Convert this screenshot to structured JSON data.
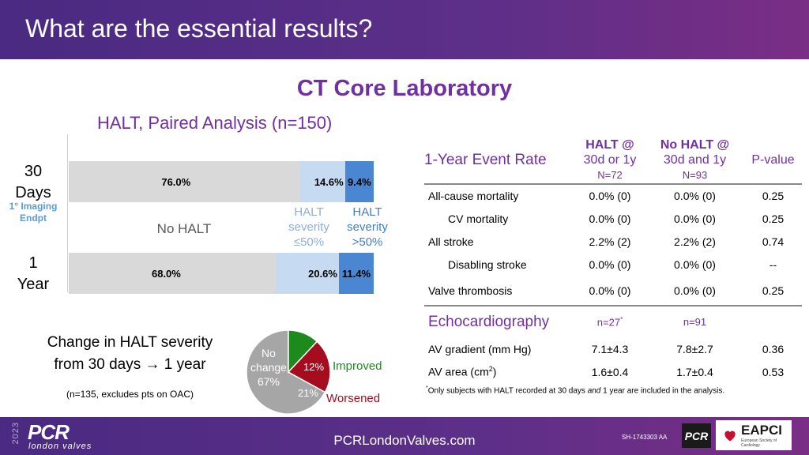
{
  "header": {
    "title": "What are the essential results?"
  },
  "subtitle": "CT Core Laboratory",
  "analysis_title": "HALT, Paired Analysis (n=150)",
  "chart_data": [
    {
      "type": "bar",
      "orientation": "horizontal",
      "stacked": true,
      "percent": true,
      "categories": [
        "30 Days",
        "1 Year"
      ],
      "series": [
        {
          "name": "No HALT",
          "values": [
            76.0,
            68.0
          ],
          "color": "#d9d9d9",
          "labels": [
            "76.0%",
            "68.0%"
          ]
        },
        {
          "name": "HALT severity ≤50%",
          "values": [
            14.6,
            20.6
          ],
          "color": "#c6dbf2",
          "labels": [
            "14.6%",
            "20.6%"
          ]
        },
        {
          "name": "HALT severity >50%",
          "values": [
            9.4,
            11.4
          ],
          "color": "#4a86d2",
          "labels": [
            "9.4%",
            "11.4%"
          ]
        }
      ],
      "category_labels": {
        "day30_line1": "30",
        "day30_line2": "Days",
        "year1_line1": "1",
        "year1_line2": "Year"
      },
      "annotation": "1° Imaging Endpt",
      "legend": {
        "no_halt": "No HALT",
        "le50": [
          "HALT",
          "severity",
          "≤50%"
        ],
        "gt50": [
          "HALT",
          "severity",
          ">50%"
        ]
      }
    },
    {
      "type": "pie",
      "title": "Change in HALT severity from 30 days → 1 year",
      "title_lines": [
        "Change in HALT severity",
        "from 30 days → 1 year"
      ],
      "note": "(n=135, excludes pts on OAC)",
      "slices": [
        {
          "name": "No change",
          "value": 67,
          "label": "67%",
          "color": "#a6a6a6",
          "text_lines": [
            "No",
            "change",
            "67%"
          ]
        },
        {
          "name": "Improved",
          "value": 12,
          "label": "12%",
          "color": "#1e8a1e",
          "legend": "Improved"
        },
        {
          "name": "Worsened",
          "value": 21,
          "label": "21%",
          "color": "#a50d1e",
          "legend": "Worsened"
        }
      ]
    },
    {
      "type": "table",
      "header": {
        "col0": "1-Year Event Rate",
        "halt_line1": "HALT @",
        "halt_line2": "30d or 1y",
        "halt_n": "N=72",
        "nohalt_line1": "No HALT @",
        "nohalt_line2": "30d and 1y",
        "nohalt_n": "N=93",
        "pvalue": "P-value"
      },
      "rows": [
        {
          "label": "All-cause mortality",
          "halt": "0.0% (0)",
          "nohalt": "0.0% (0)",
          "p": "0.25"
        },
        {
          "label": "CV mortality",
          "halt": "0.0% (0)",
          "nohalt": "0.0% (0)",
          "p": "0.25"
        },
        {
          "label": "All stroke",
          "halt": "2.2% (2)",
          "nohalt": "2.2% (2)",
          "p": "0.74"
        },
        {
          "label": "Disabling stroke",
          "halt": "0.0% (0)",
          "nohalt": "0.0% (0)",
          "p": "--"
        },
        {
          "label": "Valve thrombosis",
          "halt": "0.0% (0)",
          "nohalt": "0.0% (0)",
          "p": "0.25"
        }
      ],
      "echo": {
        "title": "Echocardiography",
        "halt_n": "n=27",
        "halt_n_mark": "*",
        "nohalt_n": "n=91",
        "rows": [
          {
            "label": "AV gradient (mm Hg)",
            "halt": "7.1±4.3",
            "nohalt": "7.8±2.7",
            "p": "0.36"
          },
          {
            "label_main": "AV area (cm",
            "label_sup": "2",
            "label_end": ")",
            "halt": "1.6±0.4",
            "nohalt": "1.7±0.4",
            "p": "0.53"
          }
        ]
      }
    }
  ],
  "footnote": {
    "mark": "*",
    "text_a": "Only subjects with HALT recorded at 30 days ",
    "text_em": "and",
    "text_b": " 1 year are included in the analysis."
  },
  "footer": {
    "year": "2023",
    "logo": "PCR",
    "logo_sub": "london valves",
    "site": "PCRLondonValves.com",
    "code": "SH-1743303 AA",
    "pcr_badge": "PCR",
    "eapci": "EAPCI",
    "eapci_sub": "European Society of Cardiology"
  }
}
